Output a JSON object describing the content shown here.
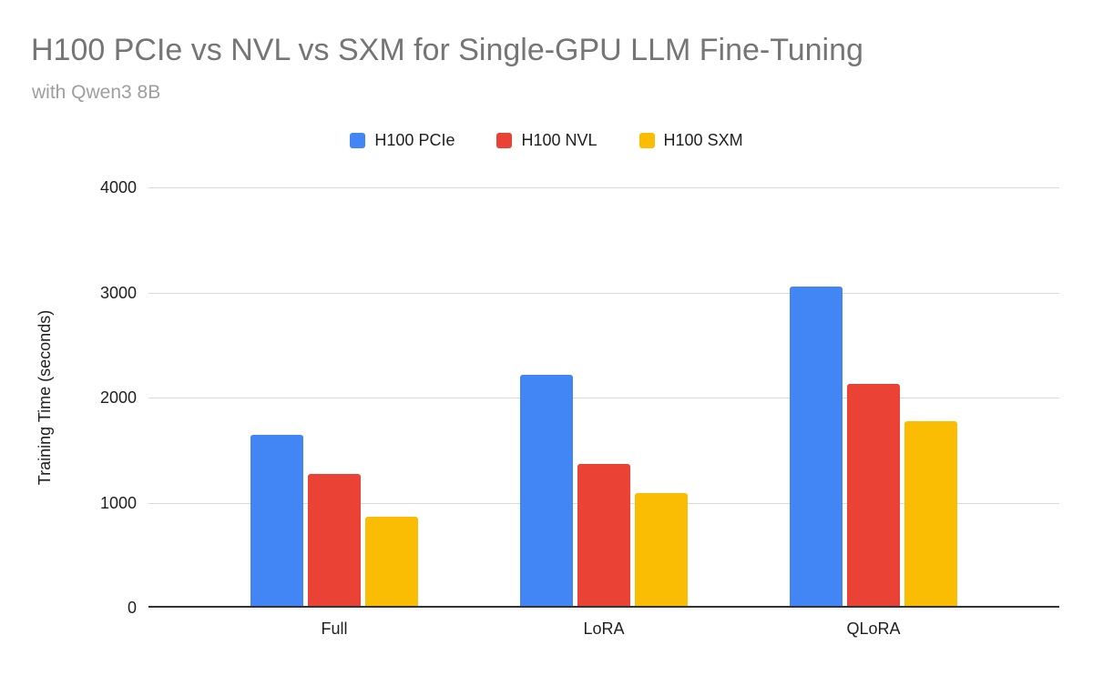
{
  "header": {
    "title": "H100 PCIe vs NVL vs SXM for Single-GPU LLM Fine-Tuning",
    "subtitle": "with Qwen3 8B"
  },
  "chart_data": {
    "type": "bar",
    "title": "H100 PCIe vs NVL vs SXM for Single-GPU LLM Fine-Tuning",
    "subtitle": "with Qwen3 8B",
    "categories": [
      "Full",
      "LoRA",
      "QLoRA"
    ],
    "series": [
      {
        "name": "H100 PCIe",
        "color": "#4285F4",
        "values": [
          1642,
          2218,
          3060
        ]
      },
      {
        "name": "H100 NVL",
        "color": "#EA4335",
        "values": [
          1276,
          1368,
          2130
        ]
      },
      {
        "name": "H100 SXM",
        "color": "#FBBC04",
        "values": [
          863,
          1088,
          1777
        ]
      }
    ],
    "xlabel": "",
    "ylabel": "Training Time (seconds)",
    "ylim": [
      0,
      4000
    ],
    "yticks": [
      0,
      1000,
      2000,
      3000,
      4000
    ],
    "grid": true,
    "legend_position": "top"
  },
  "colors": {
    "title_text": "#757575",
    "subtitle_text": "#9e9e9e",
    "axis_text": "#1f1f1f",
    "gridline": "#d9d9d9",
    "baseline": "#333333",
    "background": "#ffffff"
  }
}
